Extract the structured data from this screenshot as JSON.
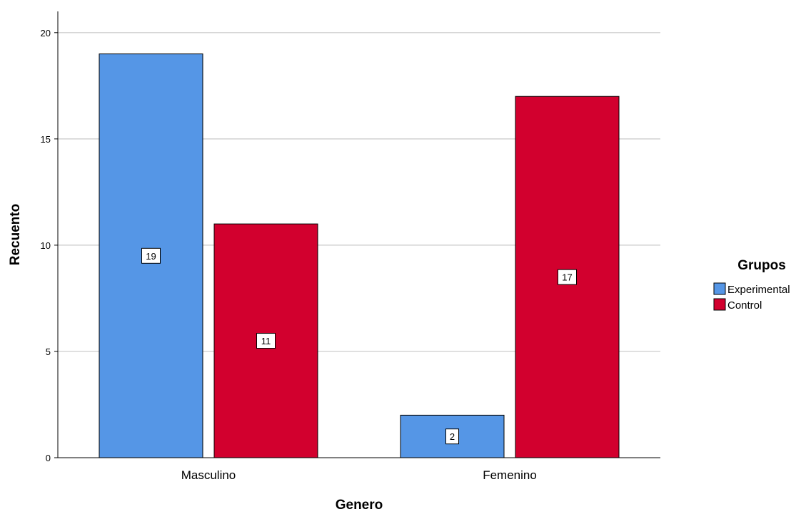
{
  "chart_data": {
    "type": "bar",
    "title": "",
    "xlabel": "Genero",
    "ylabel": "Recuento",
    "categories": [
      "Masculino",
      "Femenino"
    ],
    "series": [
      {
        "name": "Experimental",
        "values": [
          19,
          2
        ],
        "color": "#5596E6"
      },
      {
        "name": "Control",
        "values": [
          11,
          17
        ],
        "color": "#D2002E"
      }
    ],
    "ylim": [
      0,
      21
    ],
    "yticks": [
      0,
      5,
      10,
      15,
      20
    ],
    "grid": true,
    "data_labels": true,
    "legend": {
      "title": "Grupos",
      "position": "right"
    }
  }
}
